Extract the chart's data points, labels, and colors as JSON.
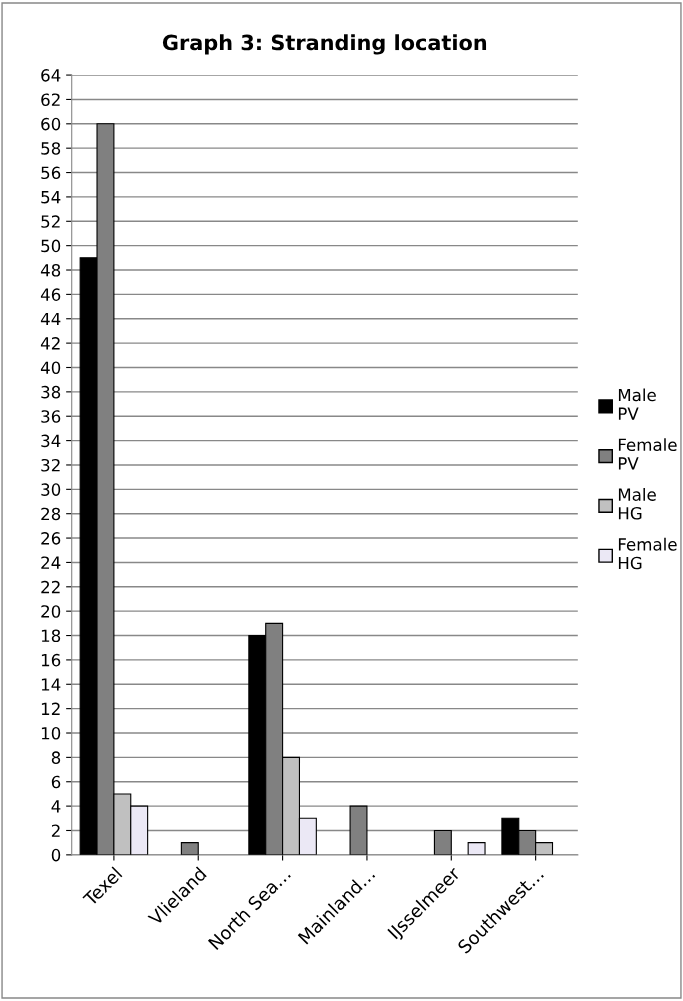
{
  "chart_data": {
    "type": "bar",
    "title": "Graph 3: Stranding location",
    "categories": [
      "Texel",
      "Vlieland",
      "North Sea…",
      "Mainland…",
      "IJsselmeer",
      "Southwest…"
    ],
    "series": [
      {
        "name": "Male PV",
        "color": "#000000",
        "values": [
          49,
          0,
          18,
          0,
          0,
          3
        ]
      },
      {
        "name": "Female PV",
        "color": "#808080",
        "values": [
          60,
          1,
          19,
          4,
          2,
          2
        ]
      },
      {
        "name": "Male HG",
        "color": "#c0c0c0",
        "values": [
          5,
          0,
          8,
          0,
          0,
          1
        ]
      },
      {
        "name": "Female HG",
        "color": "#ebe8f5",
        "values": [
          4,
          0,
          3,
          0,
          1,
          0
        ]
      }
    ],
    "ylim": [
      0,
      64
    ],
    "yticks": [
      0,
      2,
      4,
      6,
      8,
      10,
      12,
      14,
      16,
      18,
      20,
      22,
      24,
      26,
      28,
      30,
      32,
      34,
      36,
      38,
      40,
      42,
      44,
      46,
      48,
      50,
      52,
      54,
      56,
      58,
      60,
      62,
      64
    ],
    "grid": "y",
    "legend": "right"
  }
}
